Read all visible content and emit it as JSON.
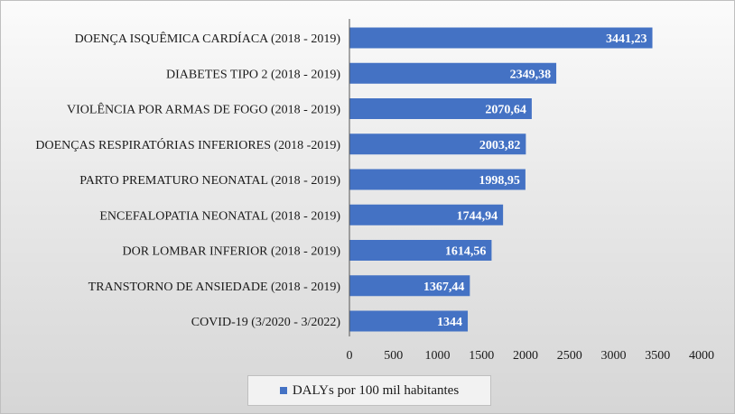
{
  "chart_data": {
    "type": "bar",
    "orientation": "horizontal",
    "title": "",
    "xlabel": "",
    "ylabel": "",
    "xlim": [
      0,
      4000
    ],
    "x_ticks": [
      0,
      500,
      1000,
      1500,
      2000,
      2500,
      3000,
      3500,
      4000
    ],
    "grid": false,
    "legend_position": "bottom",
    "bar_color": "#4472c4",
    "categories": [
      "DOENÇA ISQUÊMICA CARDÍACA (2018 - 2019)",
      "DIABETES TIPO 2 (2018 - 2019)",
      "VIOLÊNCIA POR ARMAS DE FOGO (2018 - 2019)",
      "DOENÇAS RESPIRATÓRIAS INFERIORES (2018 -2019)",
      "PARTO PREMATURO NEONATAL (2018 - 2019)",
      "ENCEFALOPATIA NEONATAL (2018 - 2019)",
      "DOR LOMBAR INFERIOR (2018 - 2019)",
      "TRANSTORNO DE ANSIEDADE (2018 - 2019)",
      "COVID-19 (3/2020 - 3/2022)"
    ],
    "series": [
      {
        "name": "DALYs por 100 mil habitantes",
        "values": [
          3441.23,
          2349.38,
          2070.64,
          2003.82,
          1998.95,
          1744.94,
          1614.56,
          1367.44,
          1344
        ],
        "data_labels": [
          "3441,23",
          "2349,38",
          "2070,64",
          "2003,82",
          "1998,95",
          "1744,94",
          "1614,56",
          "1367,44",
          "1344"
        ]
      }
    ]
  }
}
